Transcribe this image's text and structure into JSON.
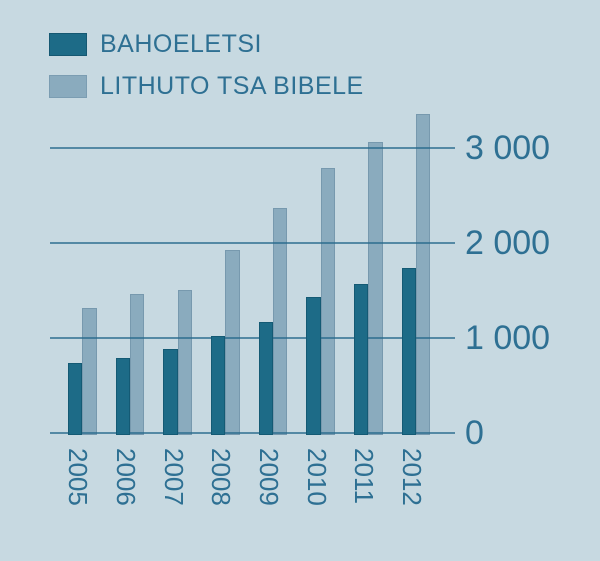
{
  "chart_data": {
    "type": "bar",
    "title": "",
    "categories": [
      "2005",
      "2006",
      "2007",
      "2008",
      "2009",
      "2010",
      "2011",
      "2012"
    ],
    "series": [
      {
        "name": "BAHOELETSI",
        "color": "#1d6b87",
        "values": [
          730,
          775,
          870,
          1010,
          1155,
          1420,
          1560,
          1725
        ]
      },
      {
        "name": "LITHUTO TSA BIBELE",
        "color": "#8aabbe",
        "values": [
          1310,
          1450,
          1495,
          1920,
          2355,
          2775,
          3055,
          3345
        ]
      }
    ],
    "yticks": [
      0,
      1000,
      2000,
      3000
    ],
    "ytick_labels": [
      "0",
      "1 000",
      "2 000",
      "3 000"
    ],
    "ylim": [
      0,
      3450
    ],
    "xlabel": "",
    "ylabel": "",
    "grid": "horizontal",
    "legend_position": "top-left"
  },
  "colors": {
    "background": "#c7d9e1",
    "bar_dark": "#1d6b87",
    "bar_light": "#8aabbe",
    "text": "#2e7093",
    "gridline": "rgba(40,105,140,0.72)"
  }
}
